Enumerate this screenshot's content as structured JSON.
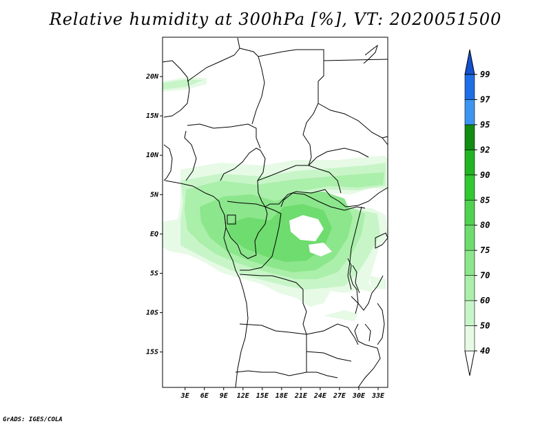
{
  "title": "Relative humidity at 300hPa [%], VT: 2020051500",
  "credit": "GrADS: IGES/COLA",
  "map": {
    "lon_range": [
      -0.5,
      34.5
    ],
    "lat_range": [
      -19.5,
      25.0
    ],
    "lat_ticks": [
      {
        "value": 20,
        "label": "20N"
      },
      {
        "value": 15,
        "label": "15N"
      },
      {
        "value": 10,
        "label": "10N"
      },
      {
        "value": 5,
        "label": "5N"
      },
      {
        "value": 0,
        "label": "EQ"
      },
      {
        "value": -5,
        "label": "5S"
      },
      {
        "value": -10,
        "label": "10S"
      },
      {
        "value": -15,
        "label": "15S"
      }
    ],
    "lon_ticks": [
      {
        "value": 3,
        "label": "3E"
      },
      {
        "value": 6,
        "label": "6E"
      },
      {
        "value": 9,
        "label": "9E"
      },
      {
        "value": 12,
        "label": "12E"
      },
      {
        "value": 15,
        "label": "15E"
      },
      {
        "value": 18,
        "label": "18E"
      },
      {
        "value": 21,
        "label": "21E"
      },
      {
        "value": 24,
        "label": "24E"
      },
      {
        "value": 27,
        "label": "27E"
      },
      {
        "value": 30,
        "label": "30E"
      },
      {
        "value": 33,
        "label": "33E"
      }
    ]
  },
  "colorbar": {
    "levels": [
      "40",
      "50",
      "60",
      "70",
      "75",
      "80",
      "85",
      "90",
      "92",
      "95",
      "97",
      "99"
    ],
    "colors": [
      "#ffffff",
      "#e6fae6",
      "#c8f5c8",
      "#aaefaa",
      "#8ce68c",
      "#6edc6e",
      "#50d250",
      "#32c832",
      "#22b422",
      "#128c12",
      "#3c96f0",
      "#1e6ee6",
      "#1450d2"
    ]
  }
}
